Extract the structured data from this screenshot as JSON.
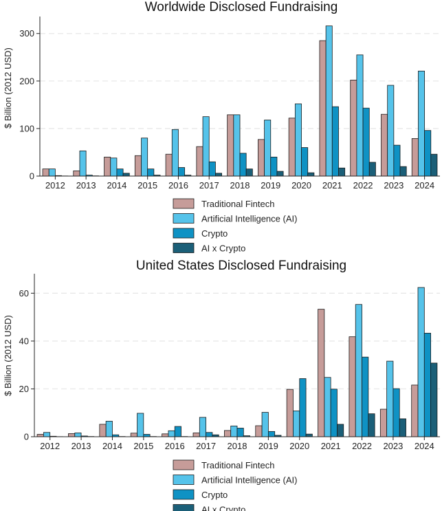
{
  "colors": {
    "traditional_fintech": "#c69c99",
    "artificial_intelligence": "#55c3ea",
    "crypto": "#0f92c4",
    "ai_x_crypto": "#1b5f78"
  },
  "chart_data": [
    {
      "type": "bar",
      "title": "Worldwide Disclosed Fundraising",
      "xlabel": "",
      "ylabel": "$ Billion (2012 USD)",
      "ylim": [
        0,
        330
      ],
      "yticks": [
        0,
        100,
        200,
        300
      ],
      "grid": true,
      "legend_position": "below",
      "categories": [
        "2012",
        "2013",
        "2014",
        "2015",
        "2016",
        "2017",
        "2018",
        "2019",
        "2020",
        "2021",
        "2022",
        "2023",
        "2024"
      ],
      "series": [
        {
          "name": "Traditional Fintech",
          "color_key": "traditional_fintech",
          "values": [
            15,
            11,
            40,
            43,
            46,
            62,
            129,
            77,
            122,
            285,
            202,
            130,
            79
          ]
        },
        {
          "name": "Artificial Intelligence (AI)",
          "color_key": "artificial_intelligence",
          "values": [
            15,
            53,
            38,
            80,
            98,
            125,
            129,
            118,
            152,
            316,
            255,
            191,
            221
          ]
        },
        {
          "name": "Crypto",
          "color_key": "crypto",
          "values": [
            1,
            2,
            15,
            15,
            18,
            30,
            48,
            40,
            60,
            146,
            143,
            65,
            96
          ]
        },
        {
          "name": "AI x Crypto",
          "color_key": "ai_x_crypto",
          "values": [
            0.3,
            0.5,
            6,
            2,
            2,
            6,
            15,
            10,
            7,
            17,
            29,
            20,
            46
          ]
        }
      ]
    },
    {
      "type": "bar",
      "title": "United States Disclosed Fundraising",
      "xlabel": "",
      "ylabel": "$ Billion (2012 USD)",
      "ylim": [
        0,
        67
      ],
      "yticks": [
        0,
        20,
        40,
        60
      ],
      "grid": true,
      "legend_position": "below",
      "categories": [
        "2012",
        "2013",
        "2014",
        "2015",
        "2016",
        "2017",
        "2018",
        "2019",
        "2020",
        "2021",
        "2022",
        "2023",
        "2024"
      ],
      "series": [
        {
          "name": "Traditional Fintech",
          "color_key": "traditional_fintech",
          "values": [
            1,
            1.3,
            5.2,
            1.5,
            1.2,
            1.6,
            2.6,
            4.6,
            19.8,
            53.3,
            41.8,
            11.5,
            21.6
          ]
        },
        {
          "name": "Artificial Intelligence (AI)",
          "color_key": "artificial_intelligence",
          "values": [
            1.8,
            1.6,
            6.5,
            9.8,
            2.5,
            8.1,
            4.5,
            10.2,
            10.8,
            24.8,
            55.3,
            31.6,
            62.4
          ]
        },
        {
          "name": "Crypto",
          "color_key": "crypto",
          "values": [
            0.2,
            0.3,
            0.8,
            1.0,
            4.3,
            1.8,
            3.6,
            2.2,
            24.3,
            19.9,
            33.3,
            20.1,
            43.3
          ]
        },
        {
          "name": "AI x Crypto",
          "color_key": "ai_x_crypto",
          "values": [
            0.05,
            0.1,
            0.1,
            0.1,
            0.1,
            0.8,
            0.4,
            0.6,
            1.1,
            5.2,
            9.6,
            7.5,
            30.8
          ]
        }
      ]
    }
  ]
}
